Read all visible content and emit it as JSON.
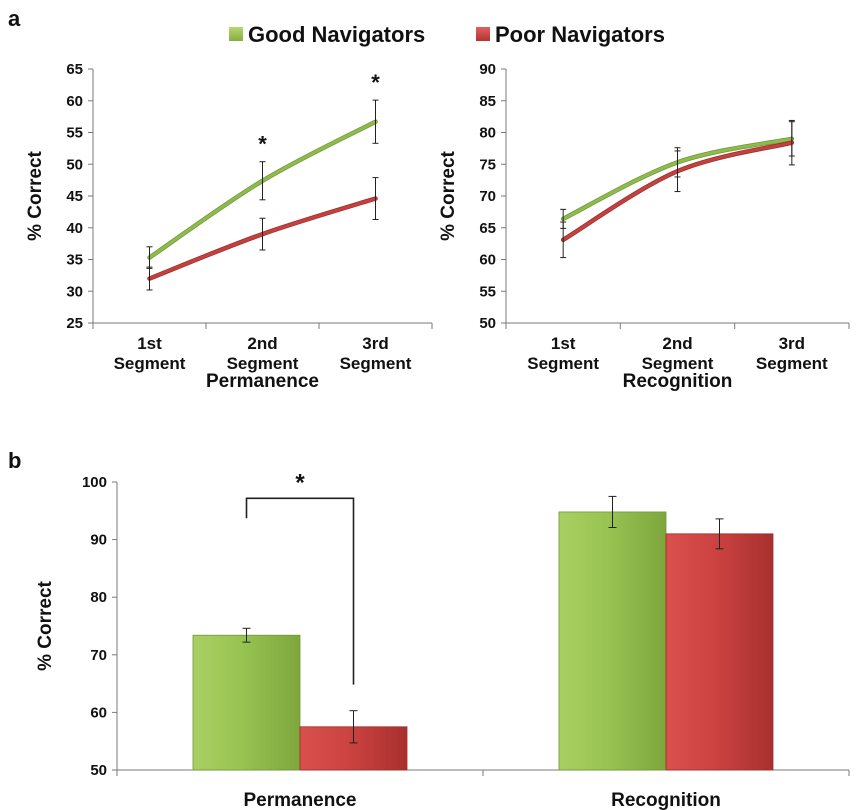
{
  "panel_labels": {
    "a": "a",
    "b": "b"
  },
  "legend": [
    {
      "name": "Good Navigators",
      "color": "#8db84a"
    },
    {
      "name": "Poor Navigators",
      "color": "#c0393b"
    }
  ],
  "chart_data": [
    {
      "type": "line",
      "panel": "a",
      "categories": [
        "1st Segment",
        "2nd Segment",
        "3rd Segment"
      ],
      "category_lines": [
        [
          "1st",
          "Segment"
        ],
        [
          "2nd",
          "Segment"
        ],
        [
          "3rd",
          "Segment"
        ]
      ],
      "xlabel": "Permanence",
      "ylabel": "% Correct",
      "ylim": [
        25,
        65
      ],
      "yticks": [
        25,
        30,
        35,
        40,
        45,
        50,
        55,
        60,
        65
      ],
      "series": [
        {
          "name": "Good Navigators",
          "values": [
            35.3,
            47.4,
            56.7
          ],
          "errors": [
            1.7,
            3.0,
            3.4
          ]
        },
        {
          "name": "Poor Navigators",
          "values": [
            32.0,
            39.0,
            44.6
          ],
          "errors": [
            1.8,
            2.5,
            3.3
          ]
        }
      ],
      "significance": [
        "",
        "*",
        "*"
      ]
    },
    {
      "type": "line",
      "panel": "a",
      "categories": [
        "1st Segment",
        "2nd Segment",
        "3rd Segment"
      ],
      "category_lines": [
        [
          "1st",
          "Segment"
        ],
        [
          "2nd",
          "Segment"
        ],
        [
          "3rd",
          "Segment"
        ]
      ],
      "xlabel": "Recognition",
      "ylabel": "% Correct",
      "ylim": [
        50,
        90
      ],
      "yticks": [
        50,
        55,
        60,
        65,
        70,
        75,
        80,
        85,
        90
      ],
      "series": [
        {
          "name": "Good Navigators",
          "values": [
            66.4,
            75.3,
            79.0
          ],
          "errors": [
            1.5,
            2.3,
            2.7
          ]
        },
        {
          "name": "Poor Navigators",
          "values": [
            63.1,
            73.9,
            78.4
          ],
          "errors": [
            2.8,
            3.2,
            3.5
          ]
        }
      ],
      "significance": [
        "",
        "",
        ""
      ]
    },
    {
      "type": "bar",
      "panel": "b",
      "categories": [
        "Permanence",
        "Recognition"
      ],
      "ylabel": "% Correct",
      "ylim": [
        50,
        100
      ],
      "yticks": [
        50,
        60,
        70,
        80,
        90,
        100
      ],
      "series": [
        {
          "name": "Good Navigators",
          "values": [
            73.4,
            94.8
          ],
          "errors": [
            1.2,
            2.7
          ]
        },
        {
          "name": "Poor Navigators",
          "values": [
            57.5,
            91.0
          ],
          "errors": [
            2.8,
            2.6
          ]
        }
      ],
      "significance_bracket": {
        "between": "Permanence",
        "label": "*"
      }
    }
  ]
}
